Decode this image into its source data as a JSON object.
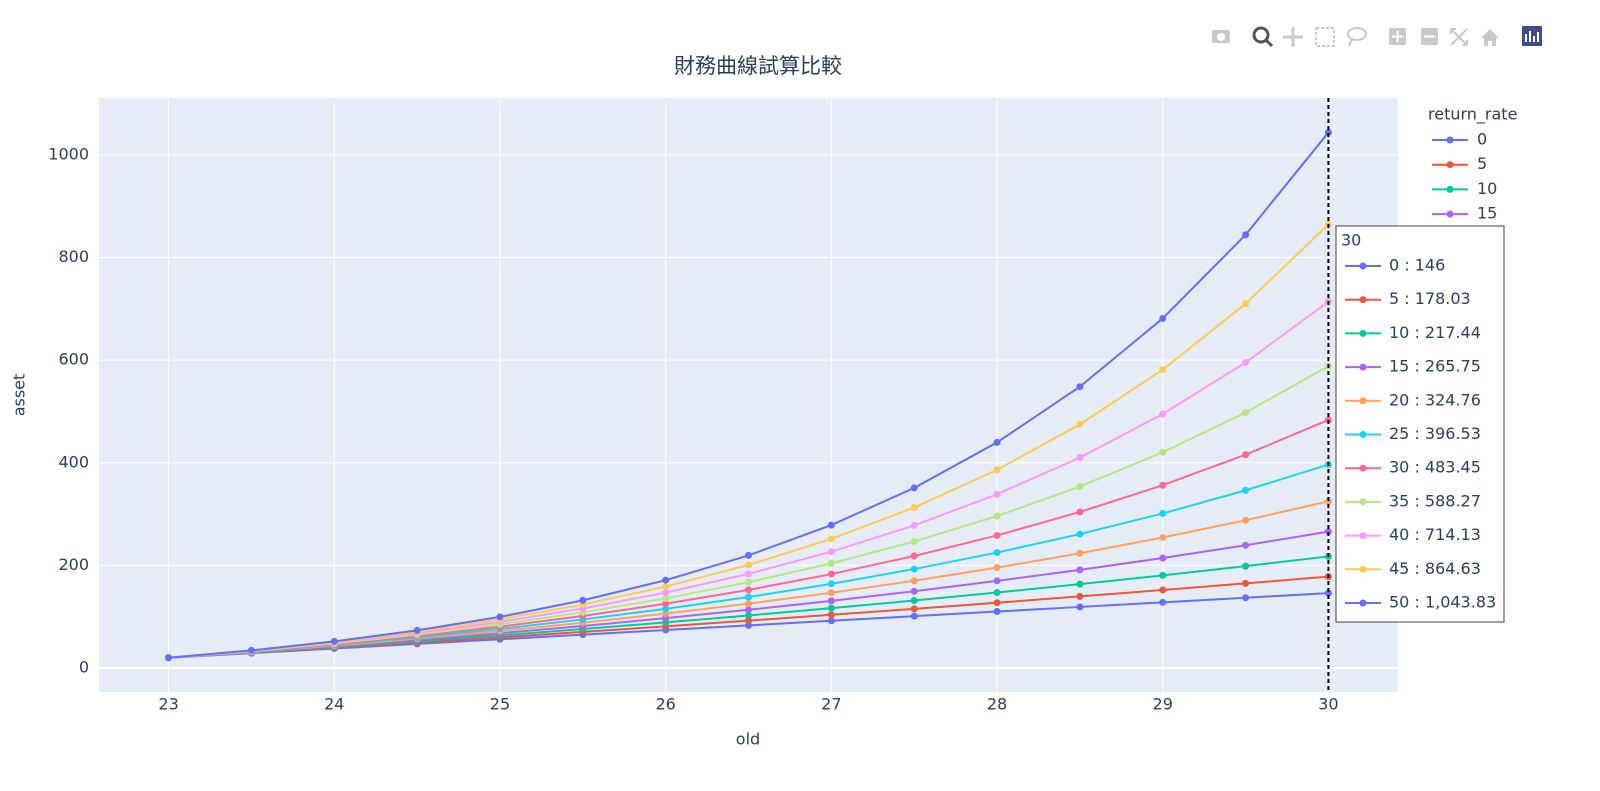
{
  "chart_data": {
    "type": "line",
    "title": "財務曲線試算比較",
    "x_label": "old",
    "y_label": "asset",
    "legend_title": "return_rate",
    "x": [
      23,
      23.5,
      24,
      24.5,
      25,
      25.5,
      26,
      26.5,
      27,
      27.5,
      28,
      28.5,
      29,
      29.5,
      30
    ],
    "xlim": [
      22.58,
      30.42
    ],
    "ylim": [
      -46.8,
      1111
    ],
    "xticks": [
      23,
      24,
      25,
      26,
      27,
      28,
      29,
      30
    ],
    "yticks": [
      0,
      200,
      400,
      600,
      800,
      1000
    ],
    "grid": true,
    "series": [
      {
        "name": "0",
        "color": "#636efa",
        "values": [
          20,
          29,
          38,
          47,
          56,
          65,
          74,
          83,
          92,
          101,
          110,
          119,
          128,
          137,
          146
        ]
      },
      {
        "name": "5",
        "color": "#EF553B",
        "values": [
          20,
          29.59,
          39.41,
          49.47,
          59.79,
          70.36,
          81.19,
          92.29,
          103.66,
          115.31,
          127.25,
          139.48,
          152.02,
          164.87,
          178.03
        ]
      },
      {
        "name": "10",
        "color": "#00cc96",
        "values": [
          20,
          30.16,
          40.81,
          51.99,
          63.7,
          75.99,
          88.88,
          102.4,
          116.58,
          131.46,
          147.05,
          163.41,
          180.57,
          198.56,
          217.44
        ]
      },
      {
        "name": "15",
        "color": "#ab63fa",
        "values": [
          20,
          30.72,
          42.21,
          54.53,
          67.74,
          81.91,
          97.11,
          113.41,
          130.88,
          149.62,
          169.72,
          191.27,
          214.39,
          239.17,
          265.75
        ]
      },
      {
        "name": "20",
        "color": "#FFA15A",
        "values": [
          20,
          31.26,
          43.6,
          57.11,
          71.91,
          88.13,
          105.89,
          125.35,
          146.66,
          170.01,
          195.59,
          223.61,
          254.31,
          287.93,
          324.76
        ]
      },
      {
        "name": "25",
        "color": "#19d3f3",
        "values": [
          20,
          31.79,
          44.98,
          59.72,
          76.21,
          94.63,
          115.24,
          138.27,
          164.03,
          192.82,
          225.01,
          261,
          301.25,
          346.24,
          396.53
        ]
      },
      {
        "name": "30",
        "color": "#FF6692",
        "values": [
          20,
          32.32,
          46.36,
          62.37,
          80.62,
          101.44,
          125.17,
          152.23,
          183.08,
          218.25,
          258.36,
          304.09,
          356.22,
          415.67,
          483.45
        ]
      },
      {
        "name": "35",
        "color": "#B6E880",
        "values": [
          20,
          32.83,
          47.73,
          65.05,
          85.17,
          108.54,
          135.71,
          167.26,
          203.93,
          246.54,
          296.04,
          353.56,
          420.38,
          498.03,
          588.27
        ]
      },
      {
        "name": "40",
        "color": "#FF97FF",
        "values": [
          20,
          33.33,
          49.1,
          67.76,
          89.84,
          115.97,
          146.88,
          183.45,
          226.73,
          277.93,
          338.52,
          410.2,
          495.02,
          595.39,
          714.13
        ]
      },
      {
        "name": "45",
        "color": "#FECB52",
        "values": [
          20,
          33.82,
          50.47,
          70.51,
          94.64,
          123.7,
          158.69,
          200.83,
          251.57,
          312.67,
          386.24,
          474.83,
          581.51,
          709.97,
          864.63
        ]
      },
      {
        "name": "50",
        "color": "#636efa",
        "values": [
          20,
          34.31,
          51.82,
          73.28,
          99.56,
          131.75,
          171.16,
          219.44,
          278.57,
          350.99,
          439.68,
          548.3,
          681.34,
          844.28,
          1043.83
        ]
      }
    ],
    "hover": {
      "title": "30",
      "labels": [
        "0 : 146",
        "5 : 178.03",
        "10 : 217.44",
        "15 : 265.75",
        "20 : 324.76",
        "25 : 396.53",
        "30 : 483.45",
        "35 : 588.27",
        "40 : 714.13",
        "45 : 864.63",
        "50 : 1,043.83"
      ]
    }
  }
}
